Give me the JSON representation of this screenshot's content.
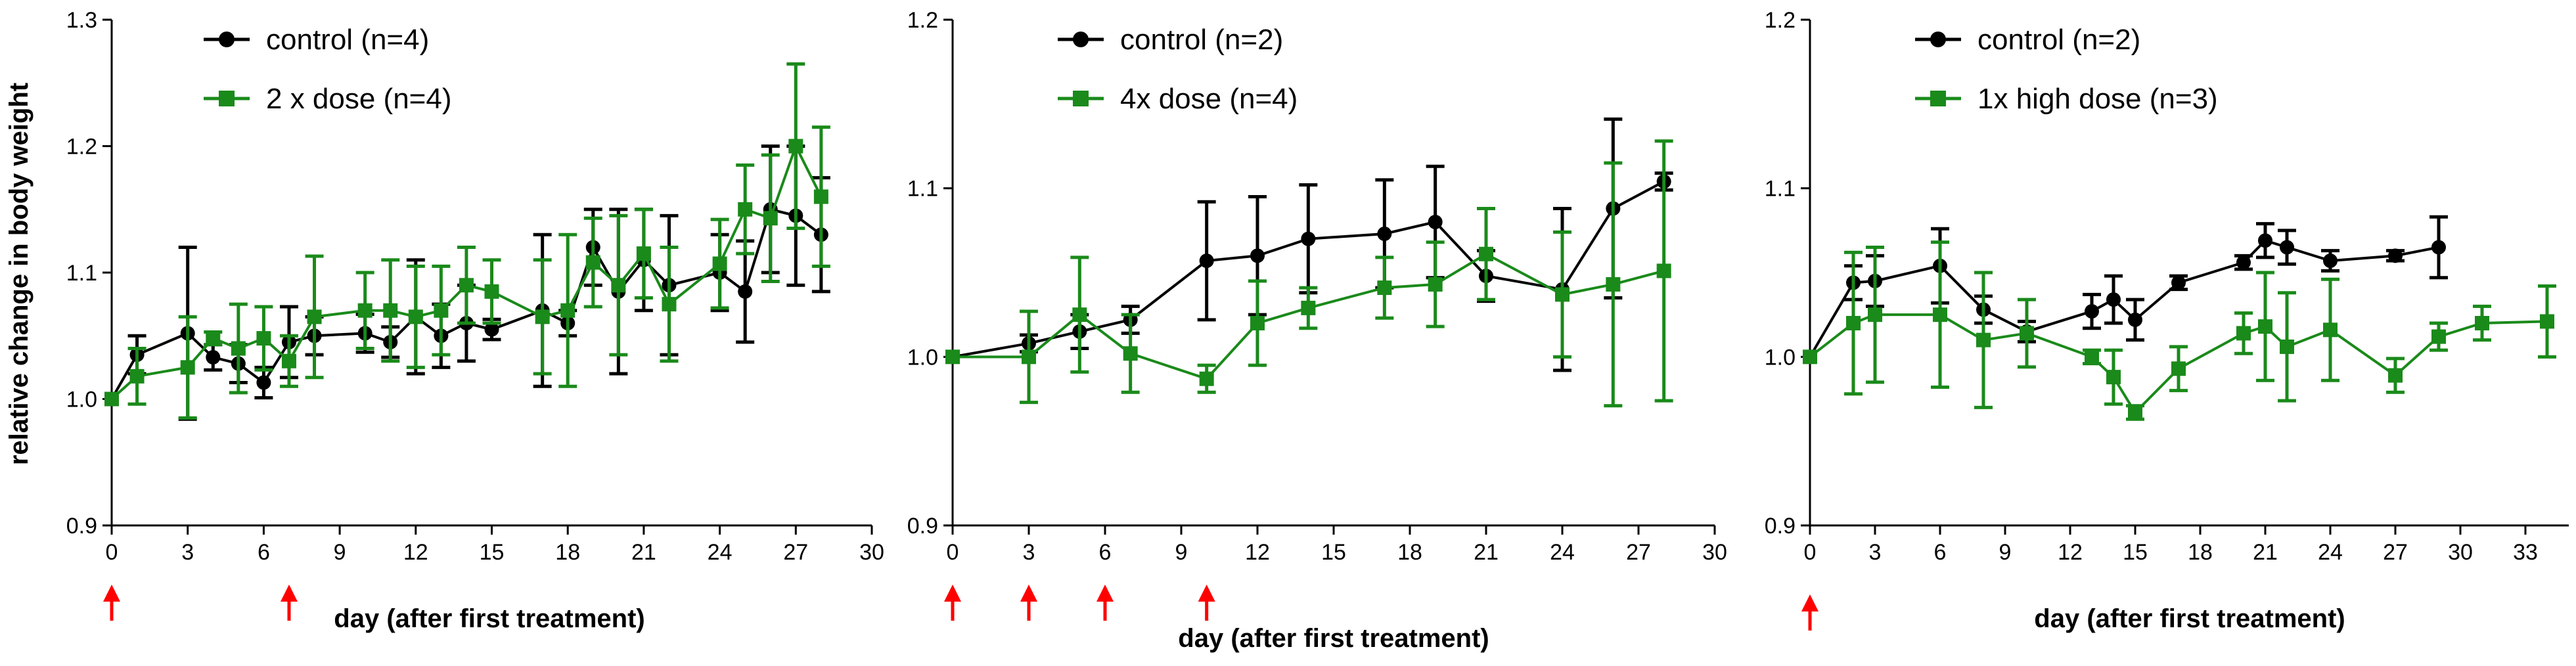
{
  "figure": {
    "ylabel": "relative change in body weight"
  },
  "colors": {
    "control": "#000000",
    "treated": "#1a8a1a",
    "arrow": "#ff0000"
  },
  "chart_data": [
    {
      "type": "line",
      "xlabel": "day (after first treatment)",
      "ylabel": "relative change in body weight",
      "xlim": [
        0,
        30
      ],
      "ylim": [
        0.9,
        1.3
      ],
      "xticks": [
        0,
        3,
        6,
        9,
        12,
        15,
        18,
        21,
        24,
        27,
        30
      ],
      "yticks": [
        0.9,
        1.0,
        1.1,
        1.2,
        1.3
      ],
      "ytick_labels": [
        "0.9",
        "1.0",
        "1.1",
        "1.2",
        "1.3"
      ],
      "treatment_days": [
        0,
        7
      ],
      "series": [
        {
          "name": "control (n=4)",
          "marker": "circle",
          "color_key": "control",
          "x": [
            0,
            1,
            3,
            4,
            5,
            6,
            7,
            8,
            10,
            11,
            12,
            13,
            14,
            15,
            17,
            18,
            19,
            20,
            21,
            22,
            24,
            25,
            26,
            27,
            28
          ],
          "y": [
            1.0,
            1.035,
            1.052,
            1.033,
            1.028,
            1.013,
            1.045,
            1.05,
            1.052,
            1.045,
            1.065,
            1.05,
            1.06,
            1.055,
            1.07,
            1.06,
            1.12,
            1.085,
            1.11,
            1.09,
            1.1,
            1.085,
            1.15,
            1.145,
            1.13
          ],
          "err": [
            0,
            0.015,
            0.068,
            0.01,
            0.015,
            0.012,
            0.028,
            0.015,
            0.015,
            0.012,
            0.045,
            0.025,
            0.03,
            0.008,
            0.06,
            0.01,
            0.03,
            0.065,
            0.04,
            0.055,
            0.03,
            0.04,
            0.05,
            0.055,
            0.045
          ]
        },
        {
          "name": "2 x dose (n=4)",
          "marker": "square",
          "color_key": "treated",
          "x": [
            0,
            1,
            3,
            4,
            5,
            6,
            7,
            8,
            10,
            11,
            12,
            13,
            14,
            15,
            17,
            18,
            19,
            20,
            21,
            22,
            24,
            25,
            26,
            27,
            28
          ],
          "y": [
            1.0,
            1.018,
            1.025,
            1.048,
            1.04,
            1.048,
            1.03,
            1.065,
            1.07,
            1.07,
            1.065,
            1.07,
            1.09,
            1.085,
            1.065,
            1.07,
            1.108,
            1.09,
            1.115,
            1.075,
            1.107,
            1.15,
            1.143,
            1.2,
            1.16
          ],
          "err": [
            0,
            0.022,
            0.04,
            0.005,
            0.035,
            0.025,
            0.02,
            0.048,
            0.03,
            0.04,
            0.04,
            0.035,
            0.03,
            0.025,
            0.045,
            0.06,
            0.035,
            0.055,
            0.035,
            0.045,
            0.035,
            0.035,
            0.05,
            0.065,
            0.055
          ]
        }
      ]
    },
    {
      "type": "line",
      "xlabel": "day (after first treatment)",
      "ylabel": "",
      "xlim": [
        0,
        30
      ],
      "ylim": [
        0.9,
        1.2
      ],
      "xticks": [
        0,
        3,
        6,
        9,
        12,
        15,
        18,
        21,
        24,
        27,
        30
      ],
      "yticks": [
        0.9,
        1.0,
        1.1,
        1.2
      ],
      "ytick_labels": [
        "0.9",
        "1.0",
        "1.1",
        "1.2"
      ],
      "treatment_days": [
        0,
        3,
        6,
        10
      ],
      "series": [
        {
          "name": "control (n=2)",
          "marker": "circle",
          "color_key": "control",
          "x": [
            0,
            3,
            5,
            7,
            10,
            12,
            14,
            17,
            19,
            21,
            24,
            26,
            28
          ],
          "y": [
            1.0,
            1.008,
            1.015,
            1.022,
            1.057,
            1.06,
            1.07,
            1.073,
            1.08,
            1.048,
            1.04,
            1.088,
            1.104
          ],
          "err": [
            0,
            0.005,
            0.01,
            0.008,
            0.035,
            0.035,
            0.032,
            0.032,
            0.033,
            0.015,
            0.048,
            0.053,
            0.005
          ]
        },
        {
          "name": "4x dose (n=4)",
          "marker": "square",
          "color_key": "treated",
          "x": [
            0,
            3,
            5,
            7,
            10,
            12,
            14,
            17,
            19,
            21,
            24,
            26,
            28
          ],
          "y": [
            1.0,
            1.0,
            1.025,
            1.002,
            0.987,
            1.02,
            1.029,
            1.041,
            1.043,
            1.061,
            1.037,
            1.043,
            1.051
          ],
          "err": [
            0,
            0.027,
            0.034,
            0.023,
            0.008,
            0.025,
            0.012,
            0.018,
            0.025,
            0.027,
            0.037,
            0.072,
            0.077
          ]
        }
      ]
    },
    {
      "type": "line",
      "xlabel": "day (after first treatment)",
      "ylabel": "",
      "xlim": [
        0,
        35
      ],
      "ylim": [
        0.9,
        1.2
      ],
      "xticks": [
        0,
        3,
        6,
        9,
        12,
        15,
        18,
        21,
        24,
        27,
        30,
        33
      ],
      "yticks": [
        0.9,
        1.0,
        1.1,
        1.2
      ],
      "ytick_labels": [
        "0.9",
        "1.0",
        "1.1",
        "1.2"
      ],
      "treatment_days": [
        0
      ],
      "series": [
        {
          "name": "control (n=2)",
          "marker": "circle",
          "color_key": "control",
          "x": [
            0,
            2,
            3,
            6,
            8,
            10,
            13,
            14,
            15,
            17,
            20,
            21,
            22,
            24,
            27,
            29
          ],
          "y": [
            1.0,
            1.044,
            1.045,
            1.054,
            1.028,
            1.015,
            1.027,
            1.034,
            1.022,
            1.044,
            1.056,
            1.069,
            1.065,
            1.057,
            1.06,
            1.065
          ],
          "err": [
            0,
            0.01,
            0.015,
            0.022,
            0.008,
            0.006,
            0.01,
            0.014,
            0.012,
            0.004,
            0.004,
            0.01,
            0.01,
            0.006,
            0.003,
            0.018
          ]
        },
        {
          "name": "1x high dose (n=3)",
          "marker": "square",
          "color_key": "treated",
          "x": [
            0,
            2,
            3,
            6,
            8,
            10,
            13,
            14,
            15,
            17,
            20,
            21,
            22,
            24,
            27,
            29,
            31,
            34
          ],
          "y": [
            1.0,
            1.02,
            1.025,
            1.025,
            1.01,
            1.014,
            1.0,
            0.988,
            0.967,
            0.993,
            1.014,
            1.018,
            1.006,
            1.016,
            0.989,
            1.012,
            1.02,
            1.021
          ],
          "err": [
            0,
            0.042,
            0.04,
            0.043,
            0.04,
            0.02,
            0.004,
            0.016,
            0.004,
            0.013,
            0.012,
            0.032,
            0.032,
            0.03,
            0.01,
            0.008,
            0.01,
            0.021
          ]
        }
      ]
    }
  ]
}
